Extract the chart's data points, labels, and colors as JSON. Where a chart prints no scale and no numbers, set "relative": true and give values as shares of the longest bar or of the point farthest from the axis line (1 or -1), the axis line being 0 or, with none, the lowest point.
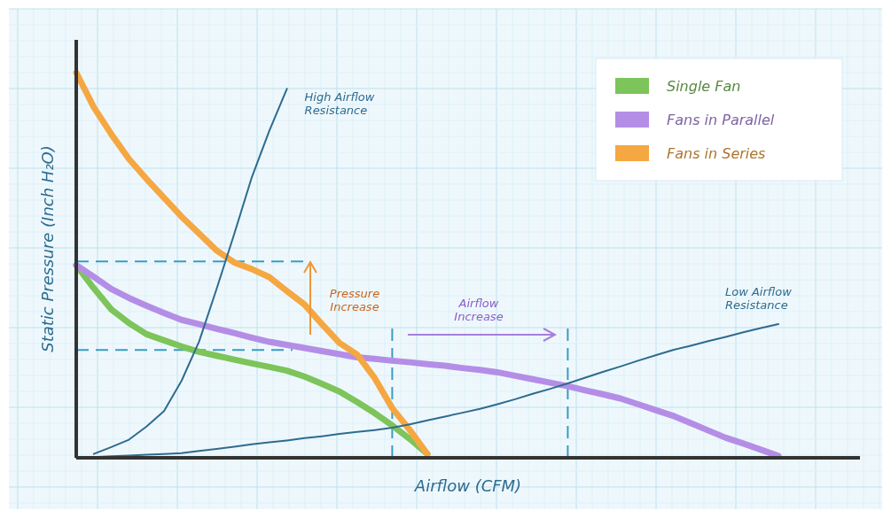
{
  "chart_data": {
    "type": "line",
    "relative": true,
    "xlabel": "Airflow (CFM)",
    "ylabel": "Static Pressure (Inch H₂O)",
    "legend": "top right",
    "grid": true,
    "categories": [
      null,
      null,
      null,
      null,
      null,
      null,
      null,
      null,
      null,
      null,
      null,
      null,
      null,
      null,
      null,
      null,
      null,
      null,
      null,
      null,
      null,
      null,
      null,
      null,
      null,
      null,
      null,
      null,
      null,
      null,
      null,
      null,
      null,
      null,
      null,
      null,
      null,
      null,
      null,
      null,
      null
    ],
    "series": [
      {
        "name": "Single Fan",
        "color": "#7dc45a",
        "values": [
          0.5,
          0.44,
          0.385,
          0.35,
          0.321,
          0.305,
          0.289,
          0.275,
          0.265,
          0.255,
          0.245,
          0.236,
          0.226,
          0.211,
          0.192,
          0.172,
          0.145,
          0.116,
          0.084,
          0.049,
          0.01,
          null,
          null,
          null,
          null,
          null,
          null,
          null,
          null,
          null,
          null,
          null,
          null,
          null,
          null,
          null,
          null,
          null,
          null,
          null,
          null
        ]
      },
      {
        "name": "Fans in Parallel",
        "color": "#b48ee6",
        "values": [
          0.5,
          0.47,
          0.438,
          0.415,
          0.395,
          0.376,
          0.358,
          0.347,
          0.335,
          0.324,
          0.312,
          0.301,
          0.293,
          0.285,
          0.277,
          0.269,
          0.261,
          0.257,
          0.252,
          0.248,
          0.243,
          0.239,
          0.233,
          0.228,
          0.222,
          0.213,
          0.204,
          0.195,
          0.186,
          0.175,
          0.165,
          0.154,
          0.139,
          0.124,
          0.109,
          0.09,
          0.071,
          0.052,
          0.037,
          0.021,
          0.005
        ]
      },
      {
        "name": "Fans in Series",
        "color": "#f5a742",
        "values": [
          1.0,
          0.91,
          0.84,
          0.776,
          0.724,
          0.675,
          0.626,
          0.582,
          0.538,
          0.507,
          0.49,
          0.469,
          0.433,
          0.398,
          0.347,
          0.298,
          0.268,
          0.207,
          0.129,
          0.072,
          0.01,
          null,
          null,
          null,
          null,
          null,
          null,
          null,
          null,
          null,
          null,
          null,
          null,
          null,
          null,
          null,
          null,
          null,
          null,
          null,
          null
        ]
      },
      {
        "name": "High Airflow Resistance",
        "color": "#2e6b8f",
        "values": [
          null,
          0.01,
          0.028,
          0.047,
          0.081,
          0.121,
          0.2,
          0.302,
          0.439,
          0.581,
          0.728,
          0.849,
          0.958,
          null,
          null,
          null,
          null,
          null,
          null,
          null,
          null,
          null,
          null,
          null,
          null,
          null,
          null,
          null,
          null,
          null,
          null,
          null,
          null,
          null,
          null,
          null,
          null,
          null,
          null,
          null,
          null
        ]
      },
      {
        "name": "Low Airflow Resistance",
        "color": "#2e6b8f",
        "values": [
          0,
          0.002,
          0.004,
          0.006,
          0.008,
          0.01,
          0.012,
          0.018,
          0.023,
          0.029,
          0.035,
          0.04,
          0.045,
          0.051,
          0.056,
          0.062,
          0.067,
          0.072,
          0.078,
          0.087,
          0.097,
          0.107,
          0.117,
          0.127,
          0.139,
          0.152,
          0.166,
          0.179,
          0.193,
          0.208,
          0.223,
          0.237,
          0.252,
          0.266,
          0.28,
          0.291,
          0.303,
          0.314,
          0.326,
          0.337,
          0.347
        ]
      }
    ],
    "ref_lines": [
      {
        "axis": "y",
        "value": 0.51,
        "color": "#3a9cc4",
        "line_style": "dashed"
      },
      {
        "axis": "y",
        "value": 0.28,
        "color": "#3a9cc4",
        "line_style": "dashed"
      }
    ],
    "annotations": [
      "Pressure Increase",
      "Airflow Increase"
    ]
  }
}
